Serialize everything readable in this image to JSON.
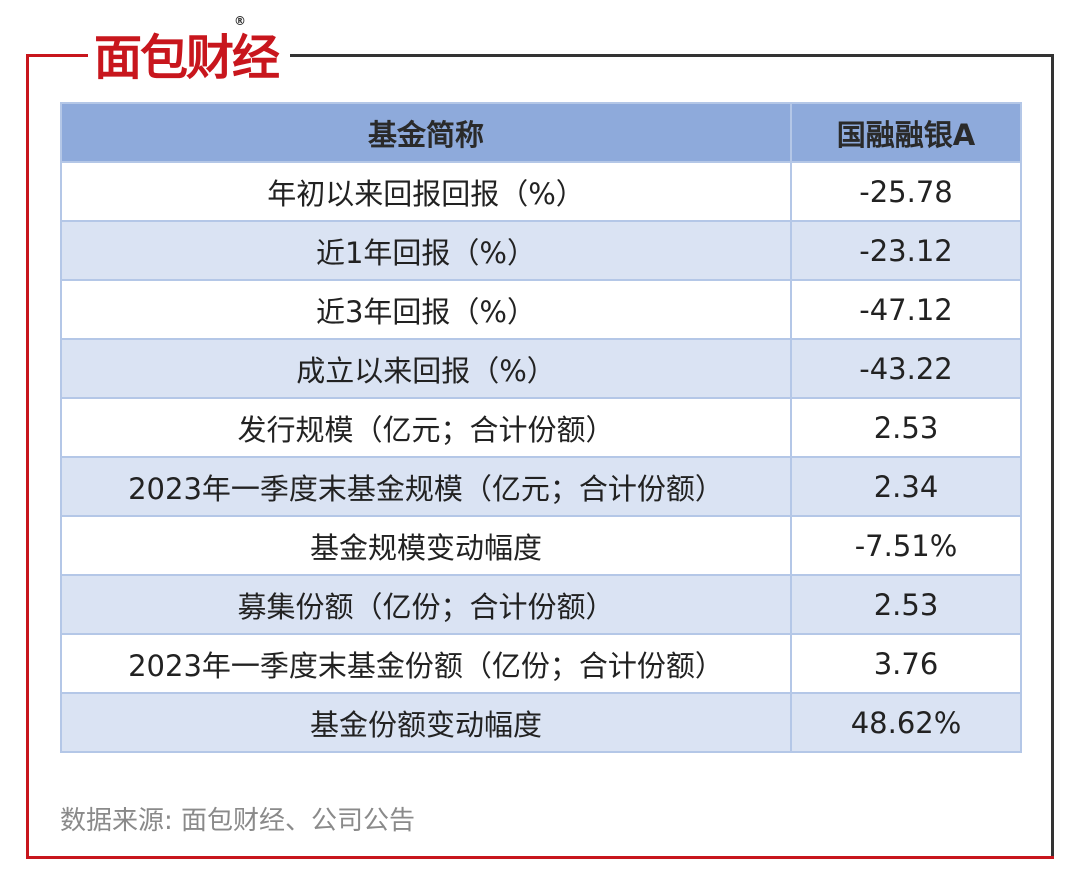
{
  "logo": {
    "text": "面包财经",
    "registered": "®"
  },
  "table": {
    "header": [
      "基金简称",
      "国融融银A"
    ],
    "rows": [
      [
        "年初以来回报回报（%）",
        "-25.78"
      ],
      [
        "近1年回报（%）",
        "-23.12"
      ],
      [
        "近3年回报（%）",
        "-47.12"
      ],
      [
        "成立以来回报（%）",
        "-43.22"
      ],
      [
        "发行规模（亿元；合计份额）",
        "2.53"
      ],
      [
        "2023年一季度末基金规模（亿元；合计份额）",
        "2.34"
      ],
      [
        "基金规模变动幅度",
        "-7.51%"
      ],
      [
        "募集份额（亿份；合计份额）",
        "2.53"
      ],
      [
        "2023年一季度末基金份额（亿份；合计份额）",
        "3.76"
      ],
      [
        "基金份额变动幅度",
        "48.62%"
      ]
    ]
  },
  "source": "数据来源: 面包财经、公司公告"
}
